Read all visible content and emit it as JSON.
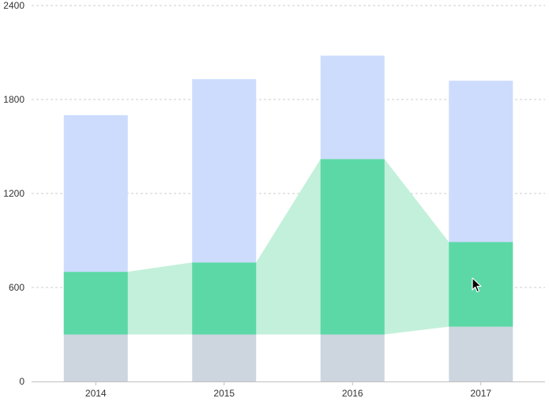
{
  "chart_data": {
    "type": "bar",
    "stacked": true,
    "categories": [
      "2014",
      "2015",
      "2016",
      "2017"
    ],
    "series": [
      {
        "values": [
          300,
          300,
          300,
          350
        ],
        "color": "#cdd5df"
      },
      {
        "values": [
          400,
          460,
          1120,
          540
        ],
        "color": "#5bd8a6"
      },
      {
        "values": [
          1000,
          1170,
          660,
          1030
        ],
        "color": "#cddcfd"
      }
    ],
    "connector_area": {
      "color": "#c3f0da",
      "from_series": 0,
      "to_series": 1
    },
    "y_ticks": [
      "0",
      "600",
      "1200",
      "1800",
      "2400"
    ],
    "ylim": [
      0,
      2400
    ],
    "grid": true,
    "xlabel": "",
    "ylabel": "",
    "title": ""
  },
  "cursor": {
    "icon": "mouse-pointer-icon"
  }
}
